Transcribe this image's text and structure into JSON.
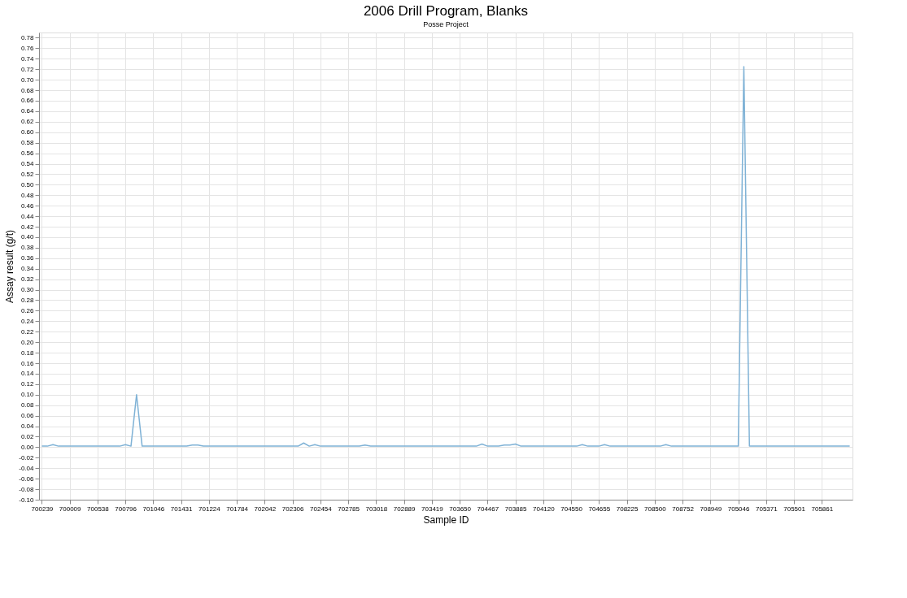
{
  "chart_data": {
    "type": "line",
    "title": "2006 Drill Program, Blanks",
    "subtitle": "Posse Project",
    "xlabel": "Sample ID",
    "ylabel": "Assay result (g/t)",
    "categories": [
      "700239",
      null,
      null,
      null,
      null,
      "700009",
      null,
      null,
      null,
      null,
      "700538",
      null,
      null,
      null,
      null,
      "700796",
      null,
      null,
      null,
      null,
      "701046",
      null,
      null,
      null,
      null,
      "701431",
      null,
      null,
      null,
      null,
      "701224",
      null,
      null,
      null,
      null,
      "701784",
      null,
      null,
      null,
      null,
      "702042",
      null,
      null,
      null,
      null,
      "702306",
      null,
      null,
      null,
      null,
      "702454",
      null,
      null,
      null,
      null,
      "702785",
      null,
      null,
      null,
      null,
      "703018",
      null,
      null,
      null,
      null,
      "702889",
      null,
      null,
      null,
      null,
      "703419",
      null,
      null,
      null,
      null,
      "703650",
      null,
      null,
      null,
      null,
      "704467",
      null,
      null,
      null,
      null,
      "703885",
      null,
      null,
      null,
      null,
      "704120",
      null,
      null,
      null,
      null,
      "704550",
      null,
      null,
      null,
      null,
      "704655",
      null,
      null,
      null,
      null,
      "708225",
      null,
      null,
      null,
      null,
      "708500",
      null,
      null,
      null,
      null,
      "708752",
      null,
      null,
      null,
      null,
      "708949",
      null,
      null,
      null,
      null,
      "705046",
      null,
      null,
      null,
      null,
      "705371",
      null,
      null,
      null,
      null,
      "705501",
      null,
      null,
      null,
      null,
      "705861",
      null,
      null,
      null,
      null,
      null
    ],
    "series": [
      {
        "color": "#7fb2d6",
        "values": [
          0.002,
          0.002,
          0.005,
          0.002,
          0.002,
          0.002,
          0.002,
          0.002,
          0.002,
          0.002,
          0.002,
          0.002,
          0.002,
          0.002,
          0.002,
          0.005,
          0.002,
          0.1,
          0.002,
          0.002,
          0.002,
          0.002,
          0.002,
          0.002,
          0.002,
          0.002,
          0.002,
          0.004,
          0.004,
          0.002,
          0.002,
          0.002,
          0.002,
          0.002,
          0.002,
          0.002,
          0.002,
          0.002,
          0.002,
          0.002,
          0.002,
          0.002,
          0.002,
          0.002,
          0.002,
          0.002,
          0.002,
          0.008,
          0.002,
          0.005,
          0.002,
          0.002,
          0.002,
          0.002,
          0.002,
          0.002,
          0.002,
          0.002,
          0.004,
          0.002,
          0.002,
          0.002,
          0.002,
          0.002,
          0.002,
          0.002,
          0.002,
          0.002,
          0.002,
          0.002,
          0.002,
          0.002,
          0.002,
          0.002,
          0.002,
          0.002,
          0.002,
          0.002,
          0.002,
          0.006,
          0.002,
          0.002,
          0.002,
          0.004,
          0.004,
          0.006,
          0.002,
          0.002,
          0.002,
          0.002,
          0.002,
          0.002,
          0.002,
          0.002,
          0.002,
          0.002,
          0.002,
          0.005,
          0.002,
          0.002,
          0.002,
          0.005,
          0.002,
          0.002,
          0.002,
          0.002,
          0.002,
          0.002,
          0.002,
          0.002,
          0.002,
          0.002,
          0.005,
          0.002,
          0.002,
          0.002,
          0.002,
          0.002,
          0.002,
          0.002,
          0.002,
          0.002,
          0.002,
          0.002,
          0.002,
          0.002,
          0.725,
          0.002,
          0.002,
          0.002,
          0.002,
          0.002,
          0.002,
          0.002,
          0.002,
          0.002,
          0.002,
          0.002,
          0.002,
          0.002,
          0.002,
          0.002,
          0.002,
          0.002,
          0.002,
          0.002
        ]
      }
    ],
    "ylim": [
      -0.1,
      0.79
    ],
    "yticks": [
      {
        "value": -0.1,
        "label": "-0.10"
      },
      {
        "value": -0.08,
        "label": "-0.08"
      },
      {
        "value": -0.06,
        "label": "-0.06"
      },
      {
        "value": -0.04,
        "label": "-0.04"
      },
      {
        "value": -0.02,
        "label": "-0.02"
      },
      {
        "value": 0,
        "label": "0.00"
      },
      {
        "value": 0.02,
        "label": "0.02"
      },
      {
        "value": 0.04,
        "label": "0.04"
      },
      {
        "value": 0.06,
        "label": "0.06"
      },
      {
        "value": 0.08,
        "label": "0.08"
      },
      {
        "value": 0.1,
        "label": "0.10"
      },
      {
        "value": 0.12,
        "label": "0.12"
      },
      {
        "value": 0.14,
        "label": "0.14"
      },
      {
        "value": 0.16,
        "label": "0.16"
      },
      {
        "value": 0.18,
        "label": "0.18"
      },
      {
        "value": 0.2,
        "label": "0.20"
      },
      {
        "value": 0.22,
        "label": "0.22"
      },
      {
        "value": 0.24,
        "label": "0.24"
      },
      {
        "value": 0.26,
        "label": "0.26"
      },
      {
        "value": 0.28,
        "label": "0.28"
      },
      {
        "value": 0.3,
        "label": "0.30"
      },
      {
        "value": 0.32,
        "label": "0.32"
      },
      {
        "value": 0.34,
        "label": "0.34"
      },
      {
        "value": 0.36,
        "label": "0.36"
      },
      {
        "value": 0.38,
        "label": "0.38"
      },
      {
        "value": 0.4,
        "label": "0.40"
      },
      {
        "value": 0.42,
        "label": "0.42"
      },
      {
        "value": 0.44,
        "label": "0.44"
      },
      {
        "value": 0.46,
        "label": "0.46"
      },
      {
        "value": 0.48,
        "label": "0.48"
      },
      {
        "value": 0.5,
        "label": "0.50"
      },
      {
        "value": 0.52,
        "label": "0.52"
      },
      {
        "value": 0.54,
        "label": "0.54"
      },
      {
        "value": 0.56,
        "label": "0.56"
      },
      {
        "value": 0.58,
        "label": "0.58"
      },
      {
        "value": 0.6,
        "label": "0.60"
      },
      {
        "value": 0.62,
        "label": "0.62"
      },
      {
        "value": 0.64,
        "label": "0.64"
      },
      {
        "value": 0.66,
        "label": "0.66"
      },
      {
        "value": 0.68,
        "label": "0.68"
      },
      {
        "value": 0.7,
        "label": "0.70"
      },
      {
        "value": 0.72,
        "label": "0.72"
      },
      {
        "value": 0.74,
        "label": "0.74"
      },
      {
        "value": 0.76,
        "label": "0.76"
      },
      {
        "value": 0.78,
        "label": "0.78"
      }
    ],
    "grid": true,
    "line_style": "solid"
  }
}
